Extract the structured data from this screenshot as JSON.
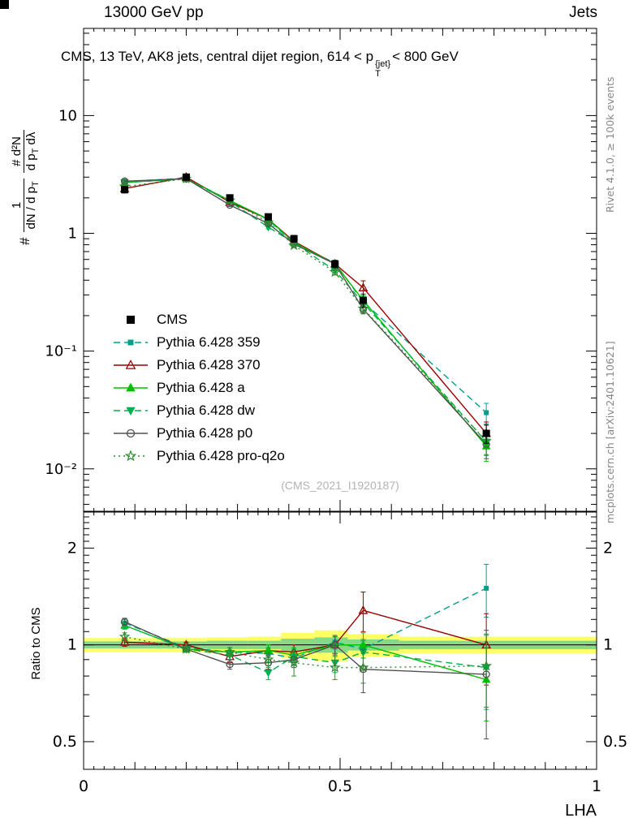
{
  "header": {
    "left": "13000 GeV pp",
    "right": "Jets"
  },
  "title": {
    "prefix": "CMS, 13 TeV, AK8 jets, central dijet region, 614 < p",
    "sup": "{jet}",
    "sub": "T",
    "suffix": "< 800 GeV"
  },
  "watermark": "(CMS_2021_I1920187)",
  "right_margin": {
    "top": "Rivet 4.1.0, ≥ 100k events",
    "bottom": "mcplots.cern.ch [arXiv:2401.10621]"
  },
  "ylabel_main": {
    "hash": "#",
    "f1num": "1",
    "f1den_main": "dN / d p",
    "f1den_sub": "T",
    "f2num": "# d²N",
    "f2den_main": "d p",
    "f2den_sub": "T",
    "f2den_tail": " dλ"
  },
  "axes": {
    "x": {
      "label": "LHA",
      "min": 0,
      "max": 1,
      "ticks": [
        0,
        0.5,
        1
      ],
      "tick_labels": [
        "0",
        "0.5",
        "1"
      ]
    },
    "y_main": {
      "log_min": -2.36,
      "log_max": 1.74,
      "tick_values": [
        10,
        1,
        0.1,
        0.01
      ],
      "tick_labels": [
        "10",
        "1",
        "10⁻¹",
        "10⁻²"
      ]
    },
    "y_ratio": {
      "label": "Ratio to CMS",
      "log_min": -0.387,
      "log_max": 0.413,
      "tick_values": [
        2,
        1,
        0.5
      ],
      "tick_labels": [
        "2",
        "1",
        "0.5"
      ]
    }
  },
  "chart_data": {
    "type": "line",
    "title": "CMS, 13 TeV, AK8 jets, central dijet region, 614 < pT{jet} < 800 GeV",
    "xlabel": "LHA",
    "ylabel": "1/(dN/dpT) d²N/(dpT dλ)",
    "ratio_ylabel": "Ratio to CMS",
    "xlim": [
      0,
      1
    ],
    "ylim_main": [
      0.0044,
      55
    ],
    "ylim_ratio": [
      0.41,
      2.59
    ],
    "legend_position": "middle-left",
    "grid": false,
    "x": [
      0.08,
      0.2,
      0.285,
      0.36,
      0.41,
      0.49,
      0.545,
      0.785
    ],
    "bin_edges": [
      0.0,
      0.14,
      0.24,
      0.32,
      0.385,
      0.45,
      0.515,
      0.615,
      1.0
    ],
    "bands": [
      {
        "name": "data-uncertainty-outer",
        "color": "#ffff66",
        "half_width": [
          0.05,
          0.05,
          0.055,
          0.06,
          0.09,
          0.11,
          0.08,
          0.06
        ]
      },
      {
        "name": "data-uncertainty-inner",
        "color": "#86d986",
        "half_width": [
          0.025,
          0.025,
          0.03,
          0.03,
          0.045,
          0.055,
          0.04,
          0.03
        ]
      }
    ],
    "series": [
      {
        "name": "CMS",
        "is_ref": true,
        "color": "#000000",
        "line_style": "none",
        "marker": "square-filled",
        "marker_size": 9,
        "values": [
          2.35,
          3.0,
          2.0,
          1.38,
          0.9,
          0.55,
          0.27,
          0.02
        ],
        "errors": [
          0.15,
          0.12,
          0.1,
          0.08,
          0.06,
          0.04,
          0.035,
          0.0035
        ],
        "ratio": [
          1,
          1,
          1,
          1,
          1,
          1,
          1,
          1
        ],
        "ratio_errors": [
          0,
          0,
          0,
          0,
          0,
          0,
          0,
          0
        ]
      },
      {
        "name": "Pythia 6.428 359",
        "is_ref": false,
        "color": "#00a08c",
        "line_style": "dashed",
        "marker": "square-filled",
        "marker_size": 6,
        "values": [
          2.75,
          2.94,
          1.9,
          1.3,
          0.82,
          0.56,
          0.262,
          0.03
        ],
        "errors": [
          0.07,
          0.06,
          0.05,
          0.04,
          0.03,
          0.025,
          0.02,
          0.006
        ],
        "ratio": [
          1.17,
          0.98,
          0.95,
          0.94,
          0.91,
          1.02,
          0.97,
          1.5
        ],
        "ratio_errors": [
          0.03,
          0.02,
          0.03,
          0.04,
          0.04,
          0.05,
          0.06,
          0.28
        ]
      },
      {
        "name": "Pythia 6.428 370",
        "is_ref": false,
        "color": "#9a0000",
        "line_style": "solid",
        "marker": "triangle-open",
        "marker_size": 10,
        "values": [
          2.4,
          3.0,
          1.84,
          1.32,
          0.855,
          0.55,
          0.345,
          0.02
        ],
        "errors": [
          0.07,
          0.06,
          0.05,
          0.04,
          0.035,
          0.03,
          0.05,
          0.005
        ],
        "ratio": [
          1.02,
          1.0,
          0.92,
          0.96,
          0.95,
          1.0,
          1.28,
          1.0
        ],
        "ratio_errors": [
          0.03,
          0.02,
          0.04,
          0.04,
          0.05,
          0.06,
          0.18,
          0.25
        ]
      },
      {
        "name": "Pythia 6.428 a",
        "is_ref": false,
        "color": "#00c000",
        "line_style": "solid",
        "marker": "triangle-filled",
        "marker_size": 9,
        "values": [
          2.7,
          2.91,
          1.9,
          1.32,
          0.837,
          0.55,
          0.27,
          0.0156
        ],
        "errors": [
          0.07,
          0.06,
          0.05,
          0.04,
          0.03,
          0.03,
          0.025,
          0.004
        ],
        "ratio": [
          1.15,
          0.97,
          0.95,
          0.96,
          0.93,
          1.0,
          1.0,
          0.78
        ],
        "ratio_errors": [
          0.03,
          0.02,
          0.03,
          0.04,
          0.05,
          0.06,
          0.09,
          0.2
        ]
      },
      {
        "name": "Pythia 6.428 dw",
        "is_ref": false,
        "color": "#00b050",
        "line_style": "dashed",
        "marker": "triangle-down-filled",
        "marker_size": 9,
        "values": [
          2.7,
          2.9,
          1.86,
          1.13,
          0.828,
          0.484,
          0.257,
          0.017
        ],
        "errors": [
          0.07,
          0.06,
          0.05,
          0.04,
          0.03,
          0.025,
          0.02,
          0.004
        ],
        "ratio": [
          1.15,
          0.97,
          0.93,
          0.82,
          0.92,
          0.88,
          0.95,
          0.85
        ],
        "ratio_errors": [
          0.03,
          0.02,
          0.03,
          0.04,
          0.05,
          0.06,
          0.09,
          0.22
        ]
      },
      {
        "name": "Pythia 6.428 p0",
        "is_ref": false,
        "color": "#505050",
        "line_style": "solid",
        "marker": "circle-open",
        "marker_size": 8,
        "values": [
          2.77,
          2.91,
          1.74,
          1.21,
          0.81,
          0.55,
          0.227,
          0.0162
        ],
        "errors": [
          0.07,
          0.06,
          0.05,
          0.04,
          0.03,
          0.025,
          0.02,
          0.004
        ],
        "ratio": [
          1.18,
          0.97,
          0.87,
          0.88,
          0.9,
          1.0,
          0.84,
          0.81
        ],
        "ratio_errors": [
          0.03,
          0.02,
          0.03,
          0.04,
          0.05,
          0.07,
          0.13,
          0.3
        ]
      },
      {
        "name": "Pythia 6.428 pro-q2o",
        "is_ref": false,
        "color": "#2e8b2e",
        "line_style": "dotted",
        "marker": "star-open",
        "marker_size": 11,
        "values": [
          2.49,
          2.91,
          1.9,
          1.24,
          0.79,
          0.468,
          0.23,
          0.0172
        ],
        "errors": [
          0.07,
          0.06,
          0.05,
          0.04,
          0.03,
          0.025,
          0.02,
          0.004
        ],
        "ratio": [
          1.06,
          0.97,
          0.95,
          0.9,
          0.88,
          0.85,
          0.85,
          0.86
        ],
        "ratio_errors": [
          0.03,
          0.02,
          0.03,
          0.05,
          0.08,
          0.07,
          0.09,
          0.22
        ]
      }
    ]
  }
}
